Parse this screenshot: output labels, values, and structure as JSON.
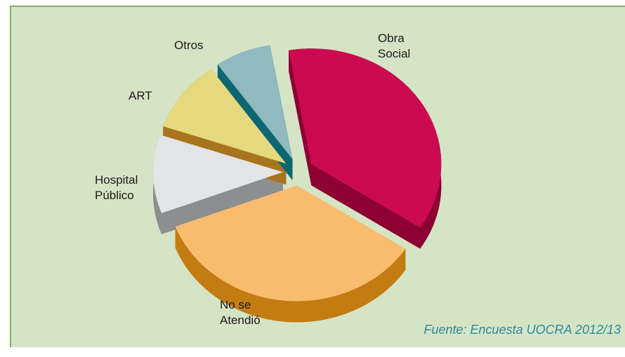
{
  "chart_data": {
    "type": "pie",
    "categories": [
      "Obra Social",
      "No se Atendió",
      "Hospital Público",
      "ART",
      "Otros"
    ],
    "values": [
      37,
      35,
      11,
      10,
      7
    ],
    "colors": [
      "#cc0a50",
      "#f9bc6e",
      "#e3e4e6",
      "#e6d87c",
      "#90b9c0"
    ],
    "side_colors": [
      "#8c0032",
      "#c37c12",
      "#8c8e90",
      "#a8741e",
      "#0c6772"
    ],
    "start_angle": -100,
    "source": "Fuente: Encuesta UOCRA 2012/13"
  }
}
